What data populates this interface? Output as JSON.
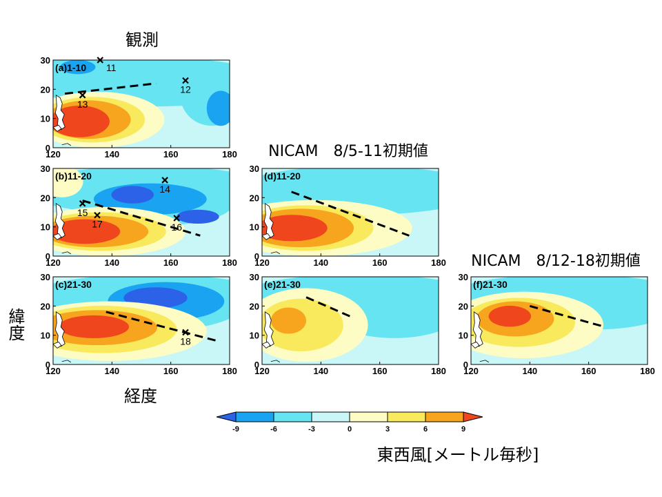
{
  "header": {
    "obs_title": "観測",
    "nicam_a_title": "NICAM　8/5-11初期値",
    "nicam_b_title": "NICAM　8/12-18初期値"
  },
  "axes": {
    "ylabel": "緯度",
    "xlabel": "経度",
    "lon_ticks": [
      "120",
      "140",
      "160",
      "180"
    ],
    "lat_ticks": [
      "0",
      "10",
      "20",
      "30"
    ]
  },
  "panels": [
    {
      "id": "a",
      "label": "(a)1-10",
      "markers": [
        {
          "num": "11",
          "lon": 136,
          "lat": 30
        },
        {
          "num": "12",
          "lon": 165,
          "lat": 23
        },
        {
          "num": "13",
          "lon": 130,
          "lat": 18
        }
      ],
      "trough": [
        [
          124,
          18.5
        ],
        [
          155,
          22
        ]
      ]
    },
    {
      "id": "b",
      "label": "(b)11-20",
      "markers": [
        {
          "num": "14",
          "lon": 158,
          "lat": 26
        },
        {
          "num": "15",
          "lon": 130,
          "lat": 18
        },
        {
          "num": "17",
          "lon": 135,
          "lat": 14
        },
        {
          "num": "16",
          "lon": 162,
          "lat": 13
        }
      ],
      "trough": [
        [
          130,
          19
        ],
        [
          170,
          7
        ]
      ]
    },
    {
      "id": "c",
      "label": "(c)21-30",
      "markers": [
        {
          "num": "18",
          "lon": 165,
          "lat": 11
        }
      ],
      "trough": [
        [
          138,
          18
        ],
        [
          176,
          8
        ]
      ]
    },
    {
      "id": "d",
      "label": "(d)11-20",
      "markers": [],
      "trough": [
        [
          130,
          22
        ],
        [
          170,
          7
        ]
      ]
    },
    {
      "id": "e",
      "label": "(e)21-30",
      "markers": [],
      "trough": [
        [
          135,
          23
        ],
        [
          151,
          16
        ]
      ]
    },
    {
      "id": "f",
      "label": "(f)21-30",
      "markers": [],
      "trough": [
        [
          140,
          20
        ],
        [
          165,
          13
        ]
      ]
    }
  ],
  "colorbar": {
    "title": "東西風[メートル毎秒]",
    "labels": [
      "-9",
      "-6",
      "-3",
      "0",
      "3",
      "6",
      "9"
    ],
    "colors": [
      "#2b62e8",
      "#1aa3f0",
      "#66e4f2",
      "#c9f7f7",
      "#fcfcc4",
      "#f8ea5c",
      "#f7a51e",
      "#f0461e"
    ]
  }
}
